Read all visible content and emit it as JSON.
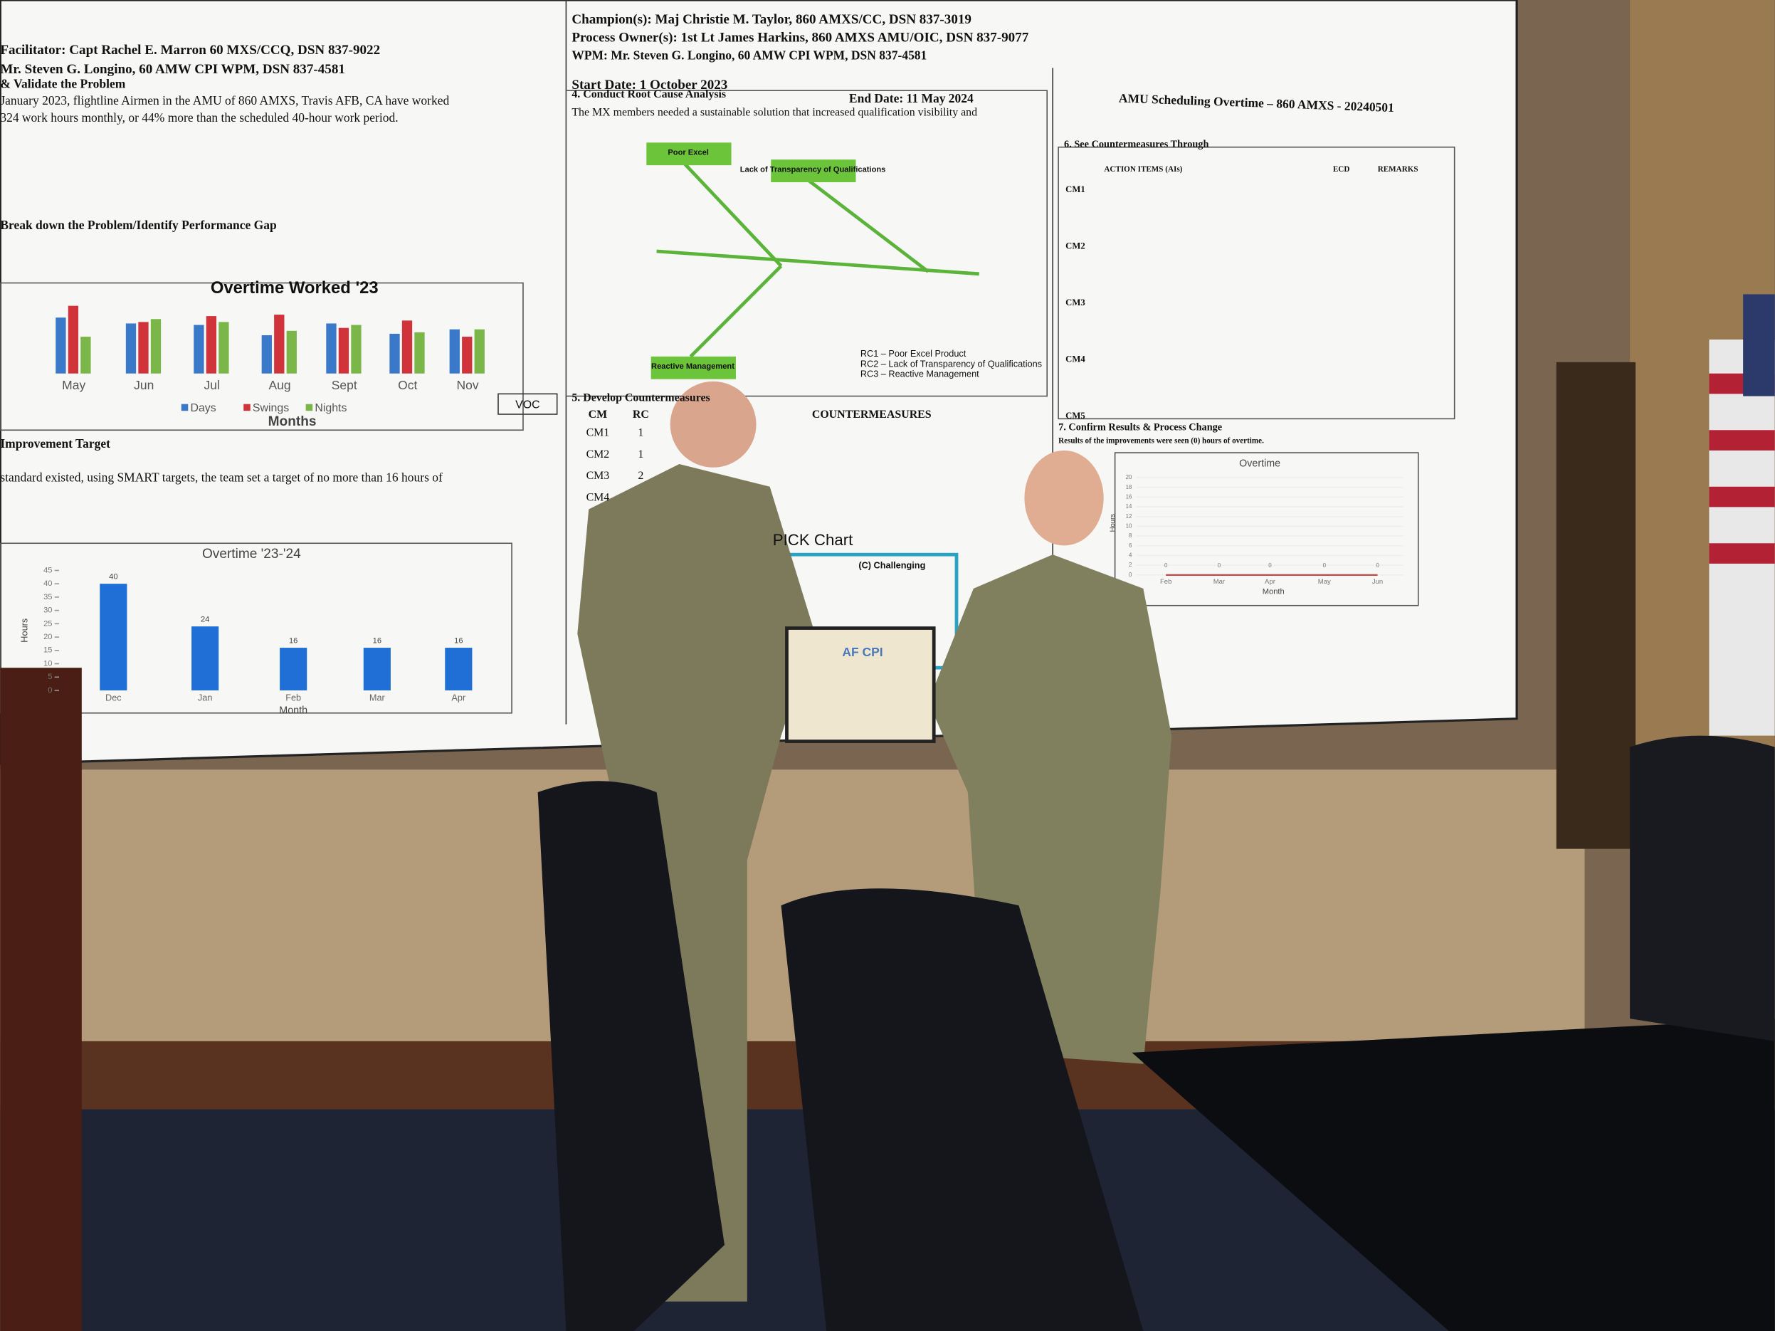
{
  "screen": {
    "left_panel": {
      "lines": [
        "Facilitator: Capt Rachel E. Marron 60 MXS/CCQ, DSN 837-9022",
        "Mr. Steven G. Longino, 60 AMW CPI WPM, DSN 837-4581",
        "& Validate the Problem",
        "January 2023, flightline Airmen in the AMU of 860 AMXS, Travis AFB, CA have worked",
        "324 work hours monthly, or 44% more than the scheduled 40-hour work period.",
        "Break down the Problem/Identify Performance Gap",
        "Improvement Target",
        "standard existed, using SMART targets, the team set a target of no more than 16 hours of"
      ],
      "chart1": {
        "type": "bar",
        "title": "Overtime Worked '23",
        "categories": [
          "May",
          "Jun",
          "Jul",
          "Aug",
          "Sept",
          "Oct",
          "Nov"
        ],
        "xlabel": "Months",
        "annotation": "VOC",
        "ylim": [
          0,
          300
        ],
        "series": [
          {
            "name": "Days",
            "color": "#3a78c9",
            "values": [
              190,
              170,
              165,
              130,
              170,
              135,
              150
            ]
          },
          {
            "name": "Swings",
            "color": "#d0343a",
            "values": [
              230,
              175,
              195,
              200,
              155,
              180,
              125
            ]
          },
          {
            "name": "Nights",
            "color": "#7ab648",
            "values": [
              125,
              185,
              175,
              145,
              165,
              140,
              150
            ]
          }
        ]
      },
      "chart2": {
        "type": "bar",
        "title": "Overtime '23-'24",
        "categories": [
          "Dec",
          "Jan",
          "Feb",
          "Mar",
          "Apr"
        ],
        "values": [
          40,
          24,
          16,
          16,
          16
        ],
        "color": "#1f6fd6",
        "ylabel": "Hours",
        "xlabel": "Month",
        "ylim": [
          0,
          45
        ],
        "yticks": [
          0,
          5,
          10,
          15,
          20,
          25,
          30,
          35,
          40,
          45
        ]
      }
    },
    "middle_panel": {
      "lines": [
        "Champion(s): Maj Christie M. Taylor, 860 AMXS/CC, DSN 837-3019",
        "Process Owner(s): 1st Lt James Harkins, 860 AMXS AMU/OIC, DSN 837-9077",
        "WPM: Mr. Steven G. Longino, 60 AMW CPI WPM, DSN 837-4581",
        "Start Date: 1 October 2023",
        "End Date: 11 May 2024",
        "4. Conduct Root Cause Analysis",
        "The MX members needed a sustainable solution that increased qualification visibility and"
      ],
      "fishbone": [
        "Poor Excel",
        "Lack of Transparency of Qualifications",
        "Reactive Management"
      ],
      "root_causes": [
        "RC1 – Poor Excel Product",
        "RC2 – Lack of Transparency of Qualifications",
        "RC3 – Reactive Management"
      ],
      "section5": "5. Develop Countermeasures",
      "table_header": [
        "CM",
        "RC",
        "COUNTERMEASURES"
      ],
      "table_rows": [
        [
          "CM1",
          "1"
        ],
        [
          "CM2",
          "1"
        ],
        [
          "CM3",
          "2"
        ],
        [
          "CM4",
          ""
        ]
      ],
      "pick_title": "PICK Chart",
      "pick_quadrant": "(C) Challenging"
    },
    "right_panel": {
      "title": "AMU Scheduling Overtime – 860 AMXS - 20240501",
      "section6": "6. See Countermeasures Through",
      "table_header": [
        "ACTION ITEMS (AIs)",
        "ECD",
        "REMARKS"
      ],
      "cm_rows": [
        "CM1",
        "CM2",
        "CM3",
        "CM4",
        "CM5"
      ],
      "section7": "7. Confirm Results & Process Change",
      "results": "Results of the improvements were seen (0) hours of overtime.",
      "chart3": {
        "type": "line",
        "title": "Overtime",
        "categories": [
          "Feb",
          "Mar",
          "Apr",
          "May",
          "Jun"
        ],
        "values": [
          0,
          0,
          0,
          0,
          0
        ],
        "xlabel": "Month",
        "ylabel": "Hours",
        "ylim": [
          0,
          20
        ],
        "yticks": [
          0,
          2,
          4,
          6,
          8,
          10,
          12,
          14,
          16,
          18,
          20
        ],
        "color": "#c0504d"
      }
    },
    "certificate": "AF CPI"
  }
}
